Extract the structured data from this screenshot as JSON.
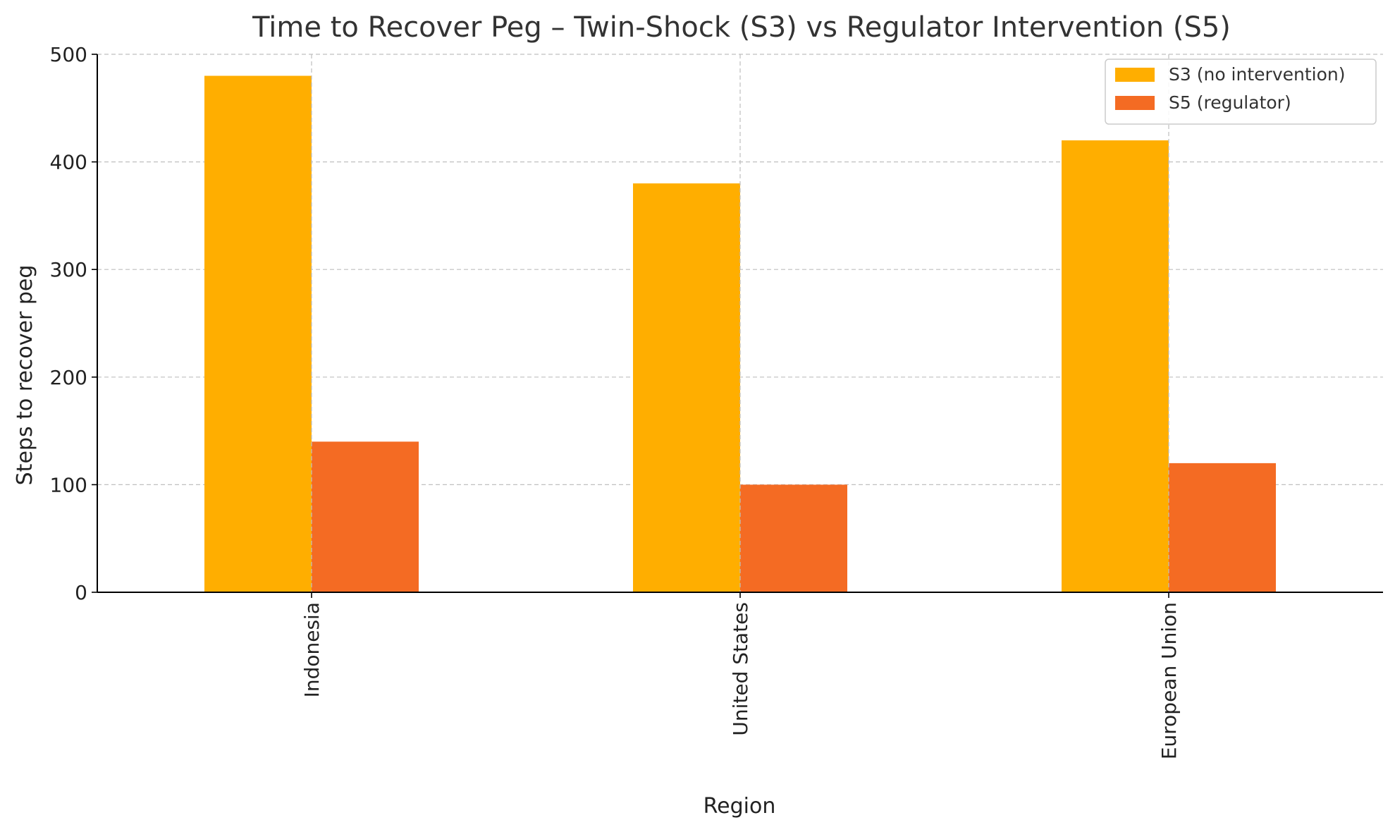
{
  "chart_data": {
    "type": "bar",
    "title": "Time to Recover Peg – Twin-Shock (S3) vs Regulator Intervention (S5)",
    "xlabel": "Region",
    "ylabel": "Steps to recover peg",
    "categories": [
      "Indonesia",
      "United States",
      "European Union"
    ],
    "series": [
      {
        "name": "S3 (no intervention)",
        "values": [
          480,
          380,
          420
        ],
        "color": "#FFAE00"
      },
      {
        "name": "S5 (regulator)",
        "values": [
          140,
          100,
          120
        ],
        "color": "#F46B23"
      }
    ],
    "ylim": [
      0,
      500
    ],
    "yticks": [
      0,
      100,
      200,
      300,
      400,
      500
    ],
    "grid": true,
    "legend_position": "top-right"
  }
}
